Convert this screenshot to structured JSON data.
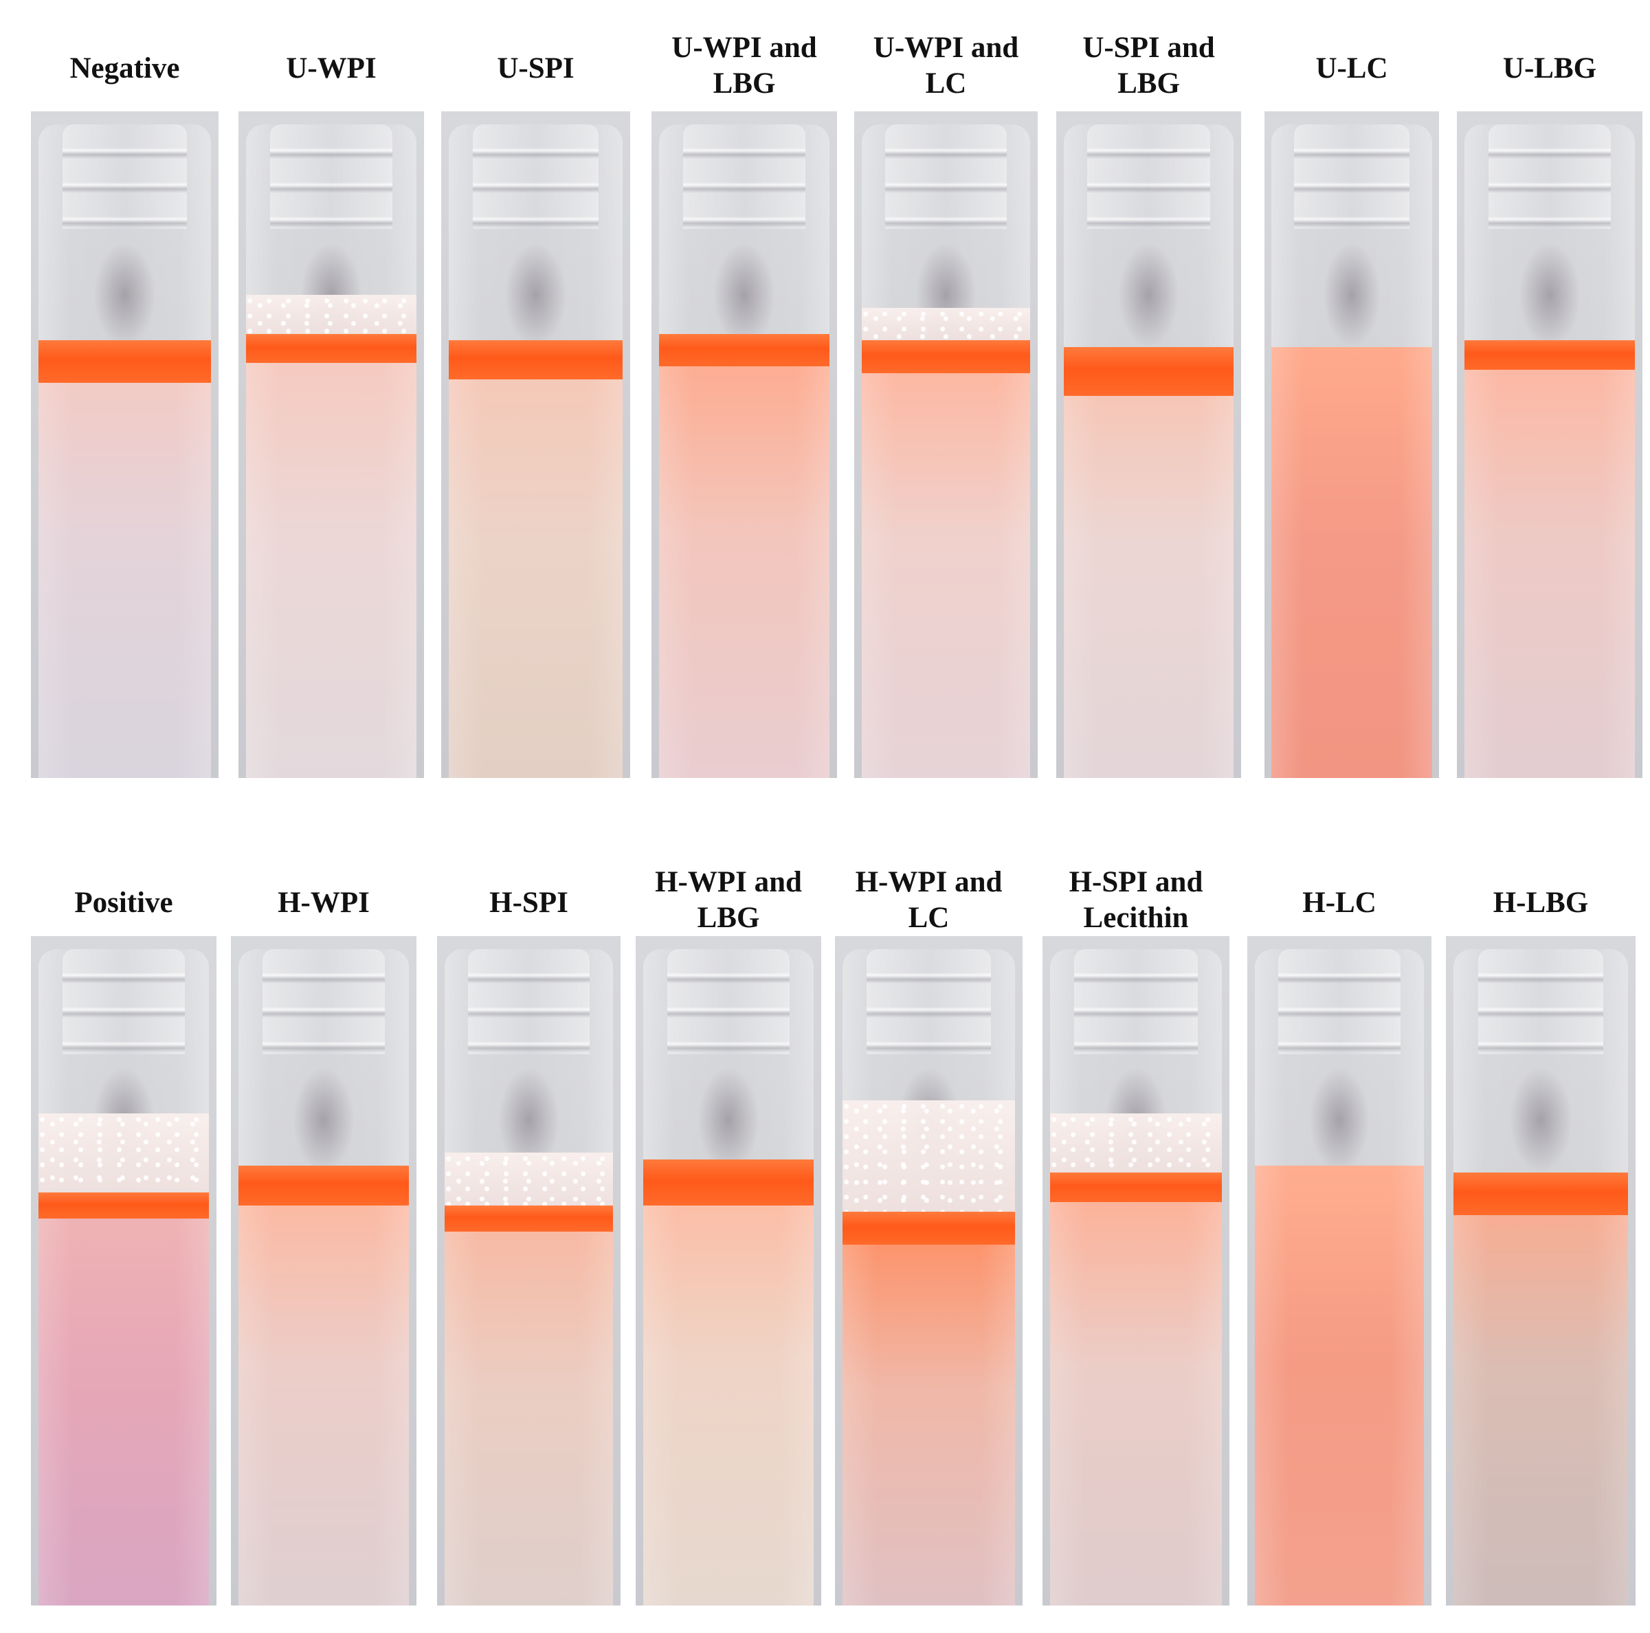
{
  "rows": [
    {
      "id": "untreated",
      "vials": [
        {
          "label": "Negative",
          "band": 0.065,
          "foam": 0.0,
          "liquid": [
            "#f6c9c0",
            "#e4d3d9",
            "#d9d4dd"
          ]
        },
        {
          "label": "U-WPI",
          "band": 0.045,
          "foam": 0.06,
          "liquid": [
            "#f7c8bc",
            "#ecd7d6",
            "#e3d9dc"
          ]
        },
        {
          "label": "U-SPI",
          "band": 0.06,
          "foam": 0.0,
          "liquid": [
            "#f7c6b4",
            "#ecd3c7",
            "#e3cfc4"
          ]
        },
        {
          "label": "U-WPI and\nLBG",
          "band": 0.05,
          "foam": 0.0,
          "liquid": [
            "#ffa88a",
            "#f3c6bc",
            "#e9cdd0"
          ]
        },
        {
          "label": "U-WPI and\nLC",
          "band": 0.05,
          "foam": 0.05,
          "liquid": [
            "#ffb39a",
            "#f0d1cc",
            "#e6d3d7"
          ]
        },
        {
          "label": "U-SPI and\nLBG",
          "band": 0.075,
          "foam": 0.0,
          "liquid": [
            "#f9c1ad",
            "#ecd6d3",
            "#e3d5d8"
          ]
        },
        {
          "label": "U-LC",
          "band": 0.0,
          "foam": 0.0,
          "liquid": [
            "#ffaa8c",
            "#f59a86",
            "#f29582"
          ]
        },
        {
          "label": "U-LBG",
          "band": 0.045,
          "foam": 0.0,
          "liquid": [
            "#ffb59e",
            "#eecac5",
            "#e3cdd1"
          ]
        }
      ]
    },
    {
      "id": "heated",
      "vials": [
        {
          "label": "Positive",
          "band": 0.04,
          "foam": 0.12,
          "liquid": [
            "#f0b4b3",
            "#e6a7b7",
            "#d9a6c2"
          ]
        },
        {
          "label": "H-WPI",
          "band": 0.06,
          "foam": 0.0,
          "liquid": [
            "#ffb59a",
            "#eccdc8",
            "#dfcfd1"
          ]
        },
        {
          "label": "H-SPI",
          "band": 0.04,
          "foam": 0.08,
          "liquid": [
            "#f9b79f",
            "#ebcdc2",
            "#dfcfcb"
          ]
        },
        {
          "label": "H-WPI and\nLBG",
          "band": 0.07,
          "foam": 0.0,
          "liquid": [
            "#ffb89e",
            "#efd4c6",
            "#e6d8cf"
          ]
        },
        {
          "label": "H-WPI and\nLC",
          "band": 0.05,
          "foam": 0.17,
          "liquid": [
            "#ff8c5f",
            "#f0b8a8",
            "#e0c1c3"
          ]
        },
        {
          "label": "H-SPI and\nLecithin",
          "band": 0.045,
          "foam": 0.09,
          "liquid": [
            "#ffae92",
            "#ebcdc7",
            "#dfcccc"
          ]
        },
        {
          "label": "H-LC",
          "band": 0.0,
          "foam": 0.0,
          "liquid": [
            "#ffad8f",
            "#f59b84",
            "#f3a18e"
          ]
        },
        {
          "label": "H-LBG",
          "band": 0.065,
          "foam": 0.0,
          "liquid": [
            "#ffa98b",
            "#dbbdb3",
            "#cdbcba"
          ]
        }
      ]
    }
  ]
}
